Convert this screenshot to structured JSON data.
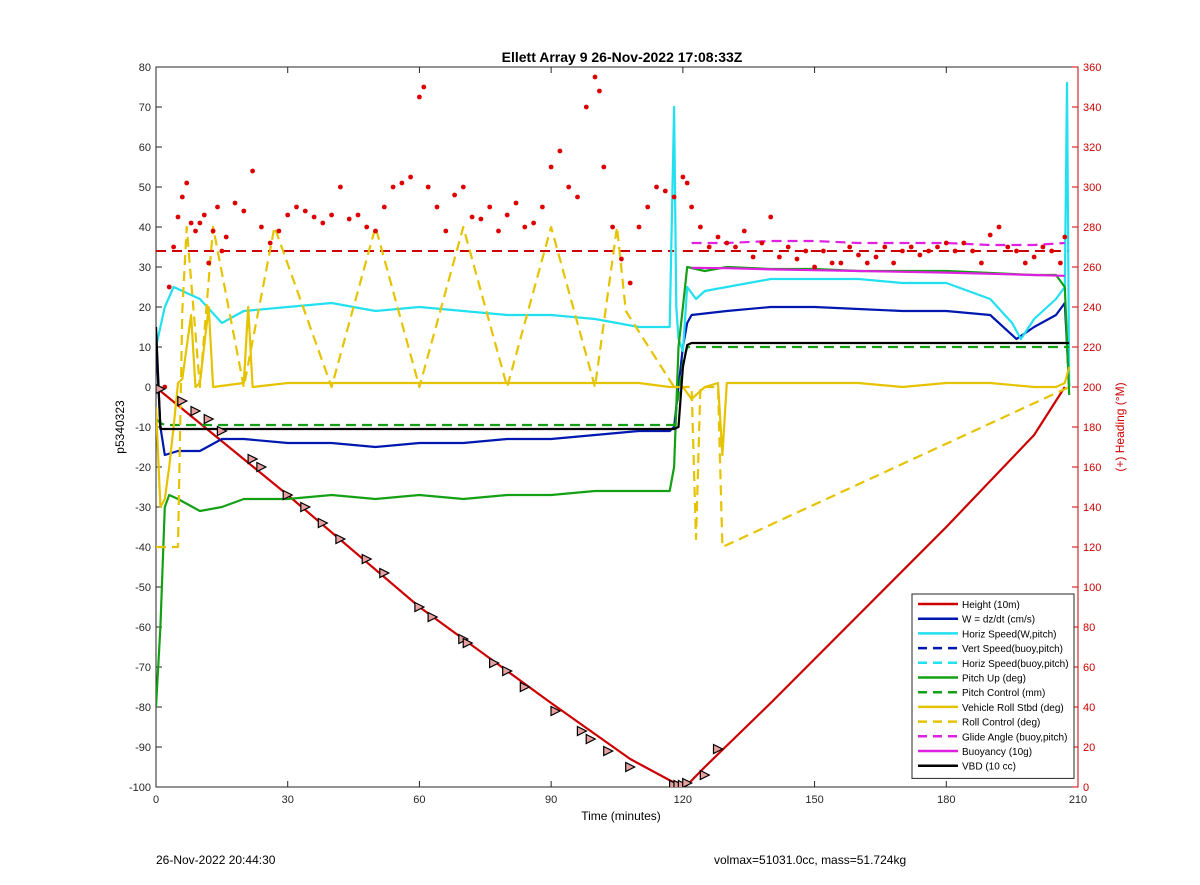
{
  "chart_data": {
    "type": "line",
    "title": "Ellett Array 9 26-Nov-2022 17:08:33Z",
    "xlabel": "Time (minutes)",
    "ylabel_left": "p5340323",
    "ylabel_right": "(+) Heading (°M)",
    "xlim": [
      0,
      210
    ],
    "ylim_left": [
      -100,
      80
    ],
    "ylim_right": [
      0,
      360
    ],
    "x_ticks": [
      "0",
      "30",
      "60",
      "90",
      "120",
      "150",
      "180",
      "210"
    ],
    "y_ticks_left": [
      "80",
      "70",
      "60",
      "50",
      "40",
      "30",
      "20",
      "10",
      "0",
      "-10",
      "-20",
      "-30",
      "-40",
      "-50",
      "-60",
      "-70",
      "-80",
      "-90",
      "-100"
    ],
    "y_ticks_right": [
      "360",
      "340",
      "320",
      "300",
      "280",
      "260",
      "240",
      "220",
      "200",
      "180",
      "160",
      "140",
      "120",
      "100",
      "80",
      "60",
      "40",
      "20",
      "0"
    ],
    "grid": true,
    "legend_position": "bottom-right",
    "series": [
      {
        "name": "Height (10m)",
        "color": "#cc0000",
        "style": "solid",
        "x": [
          0,
          1,
          30,
          60,
          90,
          108,
          119,
          121,
          125,
          140,
          160,
          180,
          200,
          207
        ],
        "y": [
          0,
          -1,
          -27,
          -55,
          -79,
          -93,
          -99.5,
          -99.5,
          -95,
          -79,
          -57,
          -35,
          -12,
          0
        ]
      },
      {
        "name": "W = dz/dt (cm/s)",
        "color": "#0018b0",
        "style": "solid",
        "x": [
          0,
          1,
          2,
          5,
          10,
          15,
          20,
          30,
          40,
          50,
          60,
          70,
          80,
          90,
          100,
          110,
          117,
          118,
          120,
          121,
          122,
          130,
          140,
          150,
          160,
          170,
          180,
          190,
          196,
          200,
          205,
          207,
          208
        ],
        "y": [
          12,
          -10,
          -17,
          -16,
          -16,
          -13,
          -13,
          -14,
          -14,
          -15,
          -14,
          -14,
          -13,
          -13,
          -12,
          -11,
          -11,
          -10,
          10,
          16,
          18,
          19,
          20,
          20,
          19.5,
          19,
          19,
          18,
          12,
          15,
          18,
          21,
          0
        ]
      },
      {
        "name": "Horiz Speed(W,pitch)",
        "color": "#22e0f0",
        "style": "solid",
        "x": [
          0,
          1,
          2,
          4,
          8,
          10,
          15,
          20,
          30,
          40,
          50,
          60,
          70,
          80,
          90,
          100,
          105,
          110,
          117,
          118,
          118.5,
          119,
          120,
          121,
          123,
          125,
          130,
          140,
          150,
          160,
          170,
          180,
          190,
          195,
          197,
          200,
          205,
          207,
          207.5,
          208
        ],
        "y": [
          10,
          15,
          20,
          25,
          23,
          22,
          16,
          19,
          20,
          21,
          19,
          20,
          19,
          18,
          18,
          17,
          16,
          15,
          15,
          70,
          20,
          12,
          9,
          25,
          22,
          24,
          25,
          27,
          27,
          27,
          26,
          26,
          22,
          16,
          12,
          17,
          22,
          25,
          76,
          0
        ]
      },
      {
        "name": "Vert Speed(buoy,pitch)",
        "color": "#0018b0",
        "style": "dashed",
        "x": [],
        "y": []
      },
      {
        "name": "Horiz Speed(buoy,pitch)",
        "color": "#22e0f0",
        "style": "dashed",
        "x": [],
        "y": []
      },
      {
        "name": "Pitch Up (deg)",
        "color": "#14a014",
        "style": "solid",
        "x": [
          0,
          1,
          2,
          3,
          5,
          10,
          15,
          20,
          30,
          40,
          50,
          60,
          70,
          80,
          90,
          100,
          110,
          117,
          118,
          119,
          120,
          121,
          125,
          130,
          140,
          150,
          160,
          170,
          180,
          190,
          200,
          205,
          207,
          208
        ],
        "y": [
          -80,
          -60,
          -30,
          -27,
          -28,
          -31,
          -30,
          -28,
          -28,
          -27,
          -28,
          -27,
          -28,
          -27,
          -27,
          -26,
          -26,
          -26,
          -20,
          10,
          20,
          30,
          29,
          30,
          29.5,
          29.5,
          29,
          29,
          29,
          28.5,
          28,
          28,
          25,
          -2
        ]
      },
      {
        "name": "Pitch Control (mm)",
        "color": "#14a014",
        "style": "dashed",
        "x": [
          0,
          1,
          2,
          118,
          120,
          121,
          125,
          208
        ],
        "y": [
          -8,
          -9,
          -9.5,
          -9.5,
          6,
          10,
          10,
          10
        ]
      },
      {
        "name": "Vehicle Roll Stbd (deg)",
        "color": "#e6c300",
        "style": "solid",
        "x": [
          0,
          1,
          2,
          3,
          4,
          5,
          6,
          8,
          9,
          10,
          12,
          13,
          20,
          21,
          22,
          30,
          40,
          50,
          60,
          70,
          80,
          90,
          100,
          105,
          110,
          117,
          118,
          120,
          122,
          125,
          128,
          129,
          130,
          140,
          150,
          160,
          170,
          180,
          190,
          200,
          205,
          207,
          208
        ],
        "y": [
          -5,
          -30,
          -28,
          -20,
          -10,
          1,
          2,
          18,
          0,
          1,
          20,
          0,
          1,
          20,
          0,
          1,
          1,
          1,
          1,
          1,
          1,
          1,
          1,
          1,
          1,
          0,
          0,
          0,
          -3,
          0,
          1,
          -17,
          1,
          1,
          1,
          1,
          0,
          1,
          1,
          0,
          0,
          1,
          5
        ]
      },
      {
        "name": "Roll Control (deg)",
        "color": "#e6c300",
        "style": "dashed",
        "x": [
          0,
          5,
          6,
          7,
          10,
          13,
          20,
          27,
          40,
          50,
          60,
          70,
          80,
          90,
          100,
          105,
          107,
          118,
          119,
          120,
          122,
          123,
          124,
          128,
          129,
          208
        ],
        "y": [
          -40,
          -40,
          19,
          40,
          0,
          40,
          0,
          40,
          0,
          40,
          0,
          40,
          0,
          40,
          0,
          40,
          19,
          0,
          0,
          0,
          0,
          -38,
          0,
          0,
          -40,
          0
        ]
      },
      {
        "name": "Glide Angle (buoy,pitch)",
        "color": "#e020e0",
        "style": "dashed",
        "x": [
          122,
          130,
          140,
          150,
          160,
          170,
          180,
          190,
          200,
          207
        ],
        "y": [
          36,
          36,
          36.5,
          36.5,
          36,
          36,
          36,
          35.5,
          35.5,
          36
        ]
      },
      {
        "name": "Buoyancy (10g)",
        "color": "#e020e0",
        "style": "solid",
        "x": [
          122,
          130,
          140,
          150,
          160,
          170,
          180,
          190,
          200,
          207
        ],
        "y": [
          29.8,
          29.7,
          29.4,
          29.2,
          29,
          28.8,
          28.6,
          28.3,
          28,
          27.8
        ]
      },
      {
        "name": "VBD (10 cc)",
        "color": "#000000",
        "style": "solid",
        "x": [
          0,
          1,
          2,
          118,
          119,
          120,
          121,
          122,
          208
        ],
        "y": [
          15,
          -10.5,
          -10.5,
          -10.5,
          -10,
          5,
          10.5,
          11,
          11
        ]
      }
    ],
    "reference_lines": [
      {
        "color": "#cc0000",
        "style": "dashed",
        "axis": "right",
        "x": [
          0,
          118
        ],
        "y": [
          268,
          268
        ]
      },
      {
        "color": "#cc0000",
        "style": "dashed",
        "axis": "right",
        "x": [
          120,
          208
        ],
        "y": [
          268,
          268
        ]
      }
    ],
    "heading_points": {
      "color": "#dd0000",
      "axis": "right",
      "x": [
        2,
        3,
        4,
        5,
        6,
        7,
        8,
        9,
        10,
        11,
        12,
        13,
        14,
        15,
        16,
        18,
        20,
        22,
        24,
        26,
        28,
        30,
        32,
        34,
        36,
        38,
        40,
        42,
        44,
        46,
        48,
        50,
        52,
        54,
        56,
        58,
        60,
        61,
        62,
        64,
        66,
        68,
        70,
        72,
        74,
        76,
        78,
        80,
        82,
        84,
        86,
        88,
        90,
        92,
        94,
        96,
        98,
        100,
        101,
        102,
        104,
        106,
        108,
        110,
        112,
        114,
        116,
        118,
        120,
        121,
        122,
        124,
        126,
        128,
        130,
        132,
        134,
        136,
        138,
        140,
        142,
        144,
        146,
        148,
        150,
        152,
        154,
        156,
        158,
        160,
        162,
        164,
        166,
        168,
        170,
        172,
        174,
        176,
        178,
        180,
        182,
        184,
        186,
        188,
        190,
        192,
        194,
        196,
        198,
        200,
        202,
        204,
        206,
        207
      ],
      "y": [
        200,
        250,
        270,
        285,
        295,
        302,
        282,
        278,
        282,
        286,
        262,
        278,
        290,
        268,
        275,
        292,
        288,
        308,
        280,
        272,
        278,
        286,
        290,
        288,
        285,
        282,
        286,
        300,
        284,
        286,
        280,
        278,
        290,
        300,
        302,
        305,
        345,
        350,
        300,
        290,
        278,
        296,
        300,
        285,
        284,
        290,
        278,
        286,
        292,
        280,
        282,
        290,
        310,
        318,
        300,
        295,
        340,
        355,
        348,
        310,
        280,
        264,
        252,
        280,
        290,
        300,
        298,
        295,
        305,
        302,
        290,
        280,
        270,
        275,
        272,
        270,
        278,
        265,
        272,
        285,
        265,
        270,
        264,
        268,
        260,
        268,
        262,
        262,
        270,
        266,
        262,
        265,
        270,
        262,
        268,
        270,
        266,
        268,
        270,
        272,
        268,
        272,
        268,
        262,
        276,
        280,
        270,
        268,
        262,
        265,
        270,
        268,
        262,
        275
      ]
    },
    "height_markers": {
      "x": [
        1,
        6,
        9,
        12,
        15,
        22,
        24,
        30,
        34,
        38,
        42,
        48,
        52,
        60,
        63,
        70,
        71,
        77,
        80,
        84,
        91,
        97,
        99,
        103,
        108,
        118,
        119,
        120,
        121,
        125,
        128
      ],
      "y": [
        -0.5,
        -3.5,
        -6,
        -8,
        -11,
        -18,
        -20,
        -27,
        -30,
        -34,
        -38,
        -43,
        -46.5,
        -55,
        -57.5,
        -63,
        -64,
        -69,
        -71,
        -75,
        -81,
        -86,
        -88,
        -91,
        -95,
        -99.5,
        -99.5,
        -99.5,
        -99,
        -97,
        -90.5
      ]
    }
  },
  "footer": {
    "left": "26-Nov-2022 20:44:30",
    "right": "volmax=51031.0cc, mass=51.724kg"
  }
}
